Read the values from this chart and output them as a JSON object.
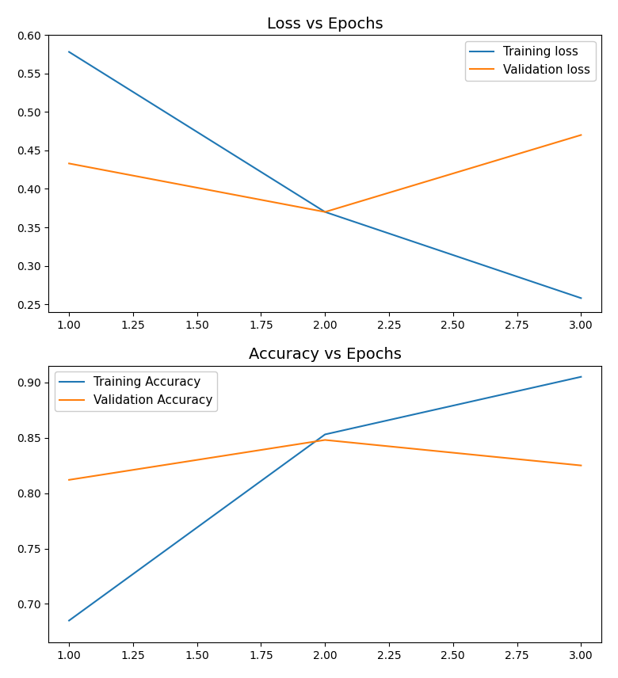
{
  "epochs": [
    1,
    2,
    3
  ],
  "loss": {
    "train": [
      0.578,
      0.37,
      0.258
    ],
    "val": [
      0.433,
      0.37,
      0.47
    ]
  },
  "accuracy": {
    "train": [
      0.685,
      0.853,
      0.905
    ],
    "val": [
      0.812,
      0.848,
      0.825
    ]
  },
  "loss_title": "Loss vs Epochs",
  "acc_title": "Accuracy vs Epochs",
  "train_loss_label": "Training loss",
  "val_loss_label": "Validation loss",
  "train_acc_label": "Training Accuracy",
  "val_acc_label": "Validation Accuracy",
  "blue_color": "#1f77b4",
  "orange_color": "#ff7f0e",
  "background_color": "#ffffff",
  "loss_ylim": [
    0.24,
    0.6
  ],
  "acc_ylim": [
    0.665,
    0.915
  ],
  "xlim": [
    0.92,
    3.08
  ]
}
